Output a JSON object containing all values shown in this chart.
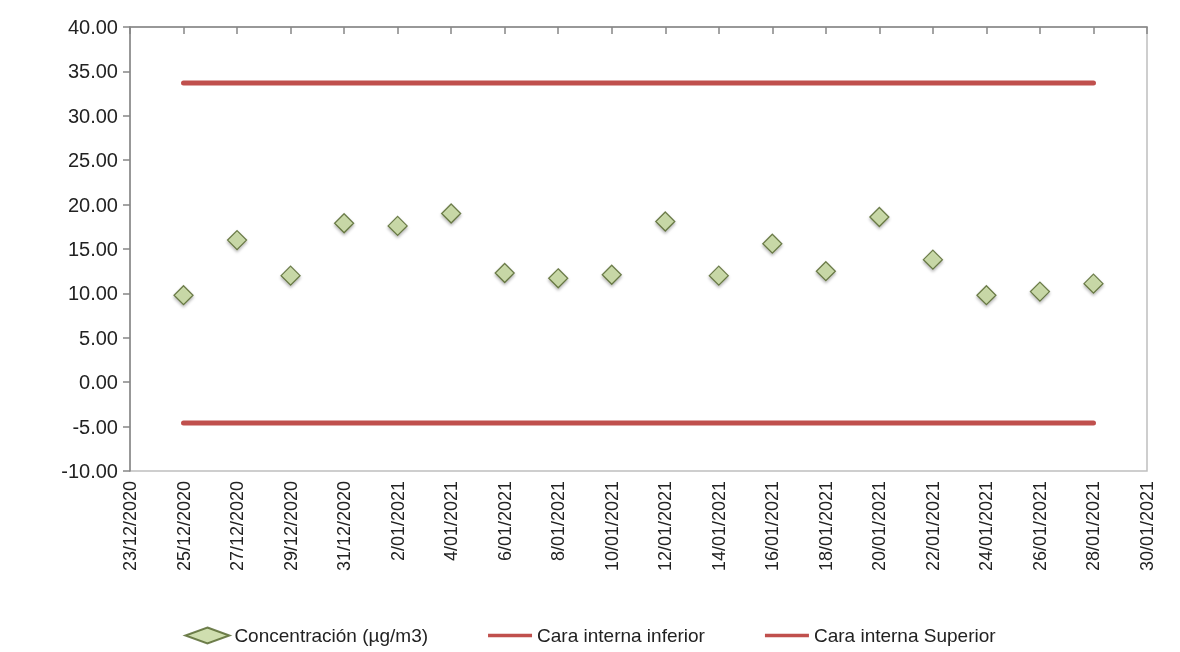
{
  "chart_data": {
    "type": "scatter",
    "marker": "diamond",
    "legend": "bottom",
    "grid": false,
    "xlim": [
      "2020-12-23",
      "2021-01-30"
    ],
    "xticks": [
      {
        "value": "2020-12-23",
        "label": "23/12/2020"
      },
      {
        "value": "2020-12-25",
        "label": "25/12/2020"
      },
      {
        "value": "2020-12-27",
        "label": "27/12/2020"
      },
      {
        "value": "2020-12-29",
        "label": "29/12/2020"
      },
      {
        "value": "2020-12-31",
        "label": "31/12/2020"
      },
      {
        "value": "2021-01-02",
        "label": "2/01/2021"
      },
      {
        "value": "2021-01-04",
        "label": "4/01/2021"
      },
      {
        "value": "2021-01-06",
        "label": "6/01/2021"
      },
      {
        "value": "2021-01-08",
        "label": "8/01/2021"
      },
      {
        "value": "2021-01-10",
        "label": "10/01/2021"
      },
      {
        "value": "2021-01-12",
        "label": "12/01/2021"
      },
      {
        "value": "2021-01-14",
        "label": "14/01/2021"
      },
      {
        "value": "2021-01-16",
        "label": "16/01/2021"
      },
      {
        "value": "2021-01-18",
        "label": "18/01/2021"
      },
      {
        "value": "2021-01-20",
        "label": "20/01/2021"
      },
      {
        "value": "2021-01-22",
        "label": "22/01/2021"
      },
      {
        "value": "2021-01-24",
        "label": "24/01/2021"
      },
      {
        "value": "2021-01-26",
        "label": "26/01/2021"
      },
      {
        "value": "2021-01-28",
        "label": "28/01/2021"
      },
      {
        "value": "2021-01-30",
        "label": "30/01/2021"
      }
    ],
    "ylim": [
      -10,
      40
    ],
    "yticks": [
      {
        "value": -10,
        "label": "-10.00"
      },
      {
        "value": -5,
        "label": "-5.00"
      },
      {
        "value": 0,
        "label": "0.00"
      },
      {
        "value": 5,
        "label": "5.00"
      },
      {
        "value": 10,
        "label": "10.00"
      },
      {
        "value": 15,
        "label": "15.00"
      },
      {
        "value": 20,
        "label": "20.00"
      },
      {
        "value": 25,
        "label": "25.00"
      },
      {
        "value": 30,
        "label": "30.00"
      },
      {
        "value": 35,
        "label": "35.00"
      },
      {
        "value": 40,
        "label": "40.00"
      }
    ],
    "series": [
      {
        "name": "Concentración (µg/m3)",
        "type": "scatter",
        "color": "#c3d69b",
        "x": [
          "2020-12-25",
          "2020-12-27",
          "2020-12-29",
          "2020-12-31",
          "2021-01-02",
          "2021-01-04",
          "2021-01-06",
          "2021-01-08",
          "2021-01-10",
          "2021-01-12",
          "2021-01-14",
          "2021-01-16",
          "2021-01-18",
          "2021-01-20",
          "2021-01-22",
          "2021-01-24",
          "2021-01-26",
          "2021-01-28"
        ],
        "values": [
          9.8,
          16.0,
          12.0,
          17.9,
          17.6,
          19.0,
          12.3,
          11.7,
          12.1,
          18.1,
          12.0,
          15.6,
          12.5,
          18.6,
          13.8,
          9.8,
          10.2,
          11.1
        ]
      },
      {
        "name": "Cara interna inferior",
        "type": "line",
        "marker": "none",
        "line_style": "solid",
        "color": "#c0504d",
        "x": [
          "2020-12-25",
          "2021-01-28"
        ],
        "values": [
          -4.6,
          -4.6
        ]
      },
      {
        "name": "Cara interna Superior",
        "type": "line",
        "marker": "none",
        "line_style": "solid",
        "color": "#c0504d",
        "x": [
          "2020-12-25",
          "2021-01-28"
        ],
        "values": [
          33.7,
          33.7
        ]
      }
    ]
  }
}
